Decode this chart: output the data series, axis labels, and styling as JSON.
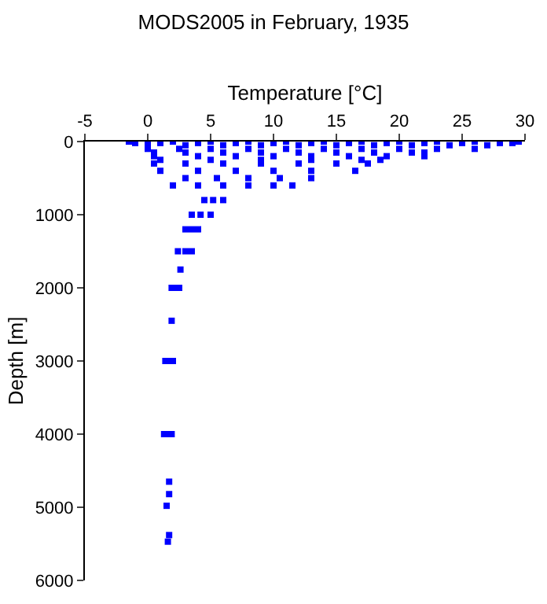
{
  "chart_data": {
    "type": "scatter",
    "title": "MODS2005 in February, 1935",
    "xlabel": "Temperature [°C]",
    "ylabel": "Depth [m]",
    "xlim": [
      -5,
      30
    ],
    "xticks": [
      -5,
      0,
      5,
      10,
      15,
      20,
      25,
      30
    ],
    "ylim": [
      6000,
      0
    ],
    "yticks": [
      0,
      1000,
      2000,
      3000,
      4000,
      5000,
      6000
    ],
    "marker": "square",
    "series": [
      {
        "color": "#0000ff",
        "x": [
          -1.5,
          0,
          2,
          5,
          8,
          11,
          14,
          17,
          20,
          23,
          26,
          29.5,
          -1,
          1,
          4,
          7,
          10,
          13,
          16,
          19,
          22,
          25,
          28,
          29,
          0,
          3,
          6,
          9,
          12,
          15,
          18,
          21,
          24,
          27,
          0,
          2.5,
          5,
          8,
          11,
          14,
          17,
          20,
          23,
          26,
          0.5,
          3,
          6,
          9,
          12,
          15,
          18,
          21,
          22,
          0.5,
          4,
          7,
          10,
          13,
          16,
          19,
          22,
          1,
          5,
          9,
          13,
          17,
          18.5,
          0.5,
          3,
          6,
          9,
          12,
          15,
          17.5,
          1,
          4,
          7,
          10,
          13,
          16.5,
          3,
          5.5,
          8,
          10.5,
          13,
          2,
          4,
          6,
          8,
          10,
          11.5,
          4.5,
          5.2,
          6,
          3.5,
          4.2,
          5,
          3,
          3.5,
          4,
          2.4,
          3,
          3.5,
          2.6,
          1.9,
          2.2,
          2.5,
          1.9,
          1.4,
          1.7,
          2,
          1.3,
          1.6,
          1.9,
          1.7,
          1.7,
          1.5,
          1.7,
          1.6
        ],
        "values": [
          0,
          0,
          0,
          0,
          0,
          0,
          0,
          0,
          0,
          0,
          0,
          0,
          20,
          20,
          20,
          20,
          20,
          20,
          20,
          20,
          20,
          20,
          20,
          20,
          50,
          50,
          50,
          50,
          50,
          50,
          50,
          50,
          50,
          50,
          100,
          100,
          100,
          100,
          100,
          100,
          100,
          100,
          100,
          100,
          150,
          150,
          150,
          150,
          150,
          150,
          150,
          150,
          150,
          200,
          200,
          200,
          200,
          200,
          200,
          200,
          200,
          250,
          250,
          250,
          250,
          250,
          250,
          300,
          300,
          300,
          300,
          300,
          300,
          300,
          400,
          400,
          400,
          400,
          400,
          400,
          500,
          500,
          500,
          500,
          500,
          600,
          600,
          600,
          600,
          600,
          600,
          800,
          800,
          800,
          1000,
          1000,
          1000,
          1200,
          1200,
          1200,
          1500,
          1500,
          1500,
          1750,
          2000,
          2000,
          2000,
          2450,
          3000,
          3000,
          3000,
          4000,
          4000,
          4000,
          4650,
          4820,
          4980,
          5380,
          5470
        ]
      }
    ]
  }
}
